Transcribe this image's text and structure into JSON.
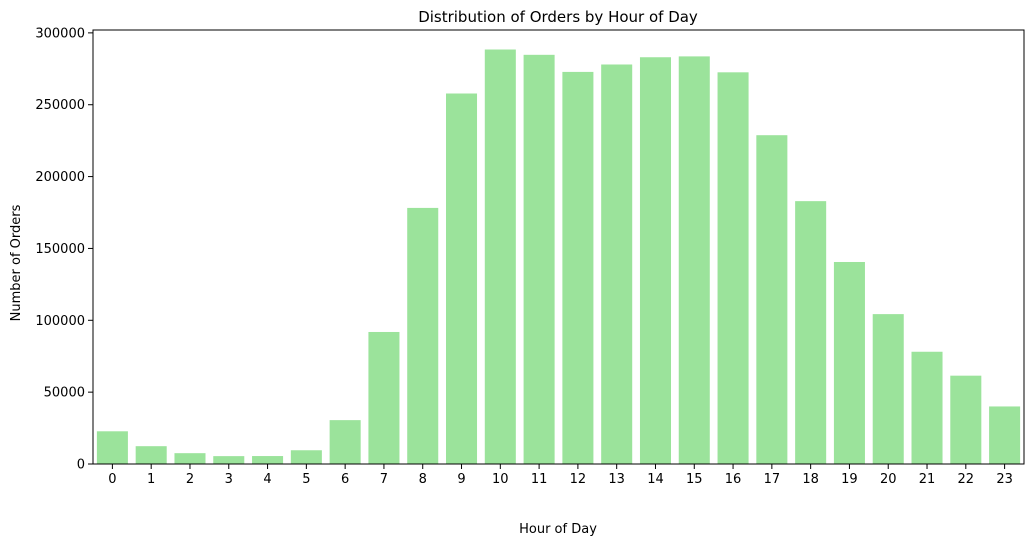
{
  "chart_data": {
    "type": "bar",
    "title": "Distribution of Orders by Hour of Day",
    "xlabel": "Hour of Day",
    "ylabel": "Number of Orders",
    "categories": [
      "0",
      "1",
      "2",
      "3",
      "4",
      "5",
      "6",
      "7",
      "8",
      "9",
      "10",
      "11",
      "12",
      "13",
      "14",
      "15",
      "16",
      "17",
      "18",
      "19",
      "20",
      "21",
      "22",
      "23"
    ],
    "values": [
      22758,
      12398,
      7539,
      5474,
      5527,
      9569,
      30529,
      91868,
      178201,
      257812,
      288418,
      284728,
      272841,
      277999,
      283042,
      283639,
      272553,
      228795,
      182912,
      140569,
      104292,
      78109,
      61468,
      40043
    ],
    "ylim": [
      0,
      302000
    ],
    "yticks": [
      0,
      50000,
      100000,
      150000,
      200000,
      250000,
      300000
    ],
    "bar_color": "#9be39b",
    "grid": false,
    "legend": "none"
  }
}
